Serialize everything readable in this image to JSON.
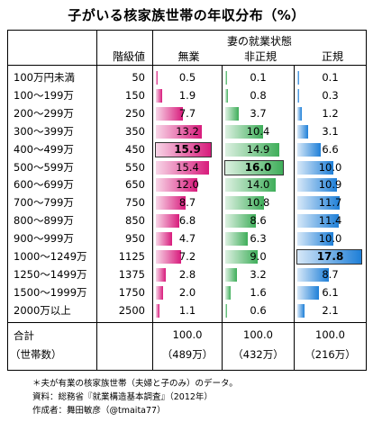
{
  "title": "子がいる核家族世帯の年収分布（%）",
  "header": {
    "group": "妻の就業状態",
    "class_col": "階級値",
    "col1": "無業",
    "col2": "非正規",
    "col3": "正規"
  },
  "chart_data": {
    "type": "table",
    "categories": [
      "100万円未満",
      "100～199万",
      "200～299万",
      "300～399万",
      "400～499万",
      "500～599万",
      "600～699万",
      "700～799万",
      "800～899万",
      "900～999万",
      "1000～1249万",
      "1250～1499万",
      "1500～1999万",
      "2000万以上"
    ],
    "class_values": [
      "50",
      "150",
      "250",
      "350",
      "450",
      "550",
      "650",
      "750",
      "850",
      "950",
      "1125",
      "1375",
      "1750",
      "2500"
    ],
    "series": [
      {
        "name": "無業",
        "values": [
          0.5,
          1.9,
          7.7,
          13.2,
          15.9,
          15.4,
          12.0,
          8.7,
          6.8,
          4.7,
          7.2,
          2.8,
          2.0,
          1.1
        ],
        "color": "#d81b7c",
        "highlight_index": 4
      },
      {
        "name": "非正規",
        "values": [
          0.1,
          0.8,
          3.7,
          10.4,
          14.9,
          16.0,
          14.0,
          10.8,
          8.6,
          6.3,
          9.0,
          3.2,
          1.6,
          0.6
        ],
        "color": "#3fae5a",
        "highlight_index": 5
      },
      {
        "name": "正規",
        "values": [
          0.1,
          0.3,
          1.2,
          3.1,
          6.6,
          10.0,
          10.9,
          11.7,
          11.4,
          10.0,
          17.8,
          8.7,
          6.1,
          2.1
        ],
        "color": "#1e7fd8",
        "highlight_index": 10
      }
    ],
    "value_max": 18
  },
  "total": {
    "label": "合計",
    "sublabel": "（世帯数）",
    "values": [
      "100.0",
      "100.0",
      "100.0"
    ],
    "counts": [
      "（489万）",
      "（432万）",
      "（216万）"
    ]
  },
  "footnotes": [
    "＊夫が有業の核家族世帯（夫婦と子のみ）のデータ。",
    "資料：総務省『就業構造基本調査』（2012年）",
    "作成者：舞田敏彦（@tmaita77）"
  ]
}
